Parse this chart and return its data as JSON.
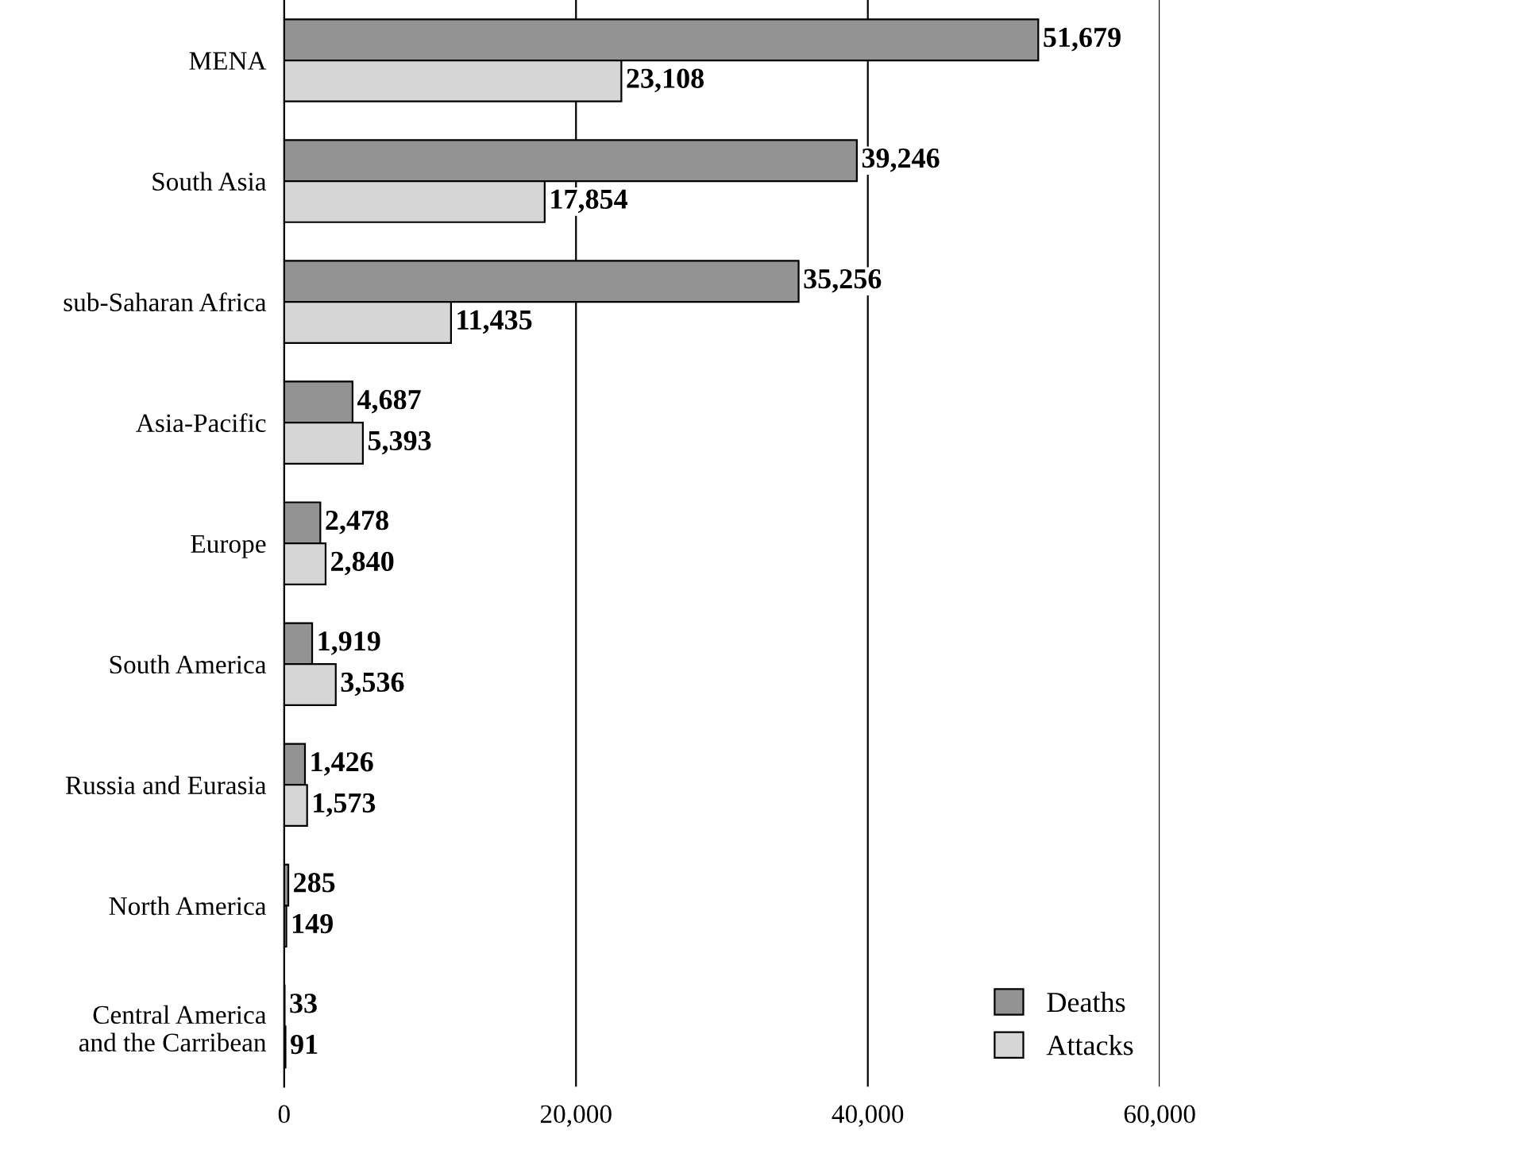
{
  "chart_data": {
    "type": "bar",
    "orientation": "horizontal",
    "categories": [
      "MENA",
      "South Asia",
      "sub-Saharan Africa",
      "Asia-Pacific",
      "Europe",
      "South America",
      "Russia and Eurasia",
      "North America",
      "Central America\nand the Carribean"
    ],
    "series": [
      {
        "name": "Deaths",
        "color": "#939393",
        "values": [
          51679,
          39246,
          35256,
          4687,
          2478,
          1919,
          1426,
          285,
          33
        ],
        "value_labels": [
          "51,679",
          "39,246",
          "35,256",
          "4,687",
          "2,478",
          "1,919",
          "1,426",
          "285",
          "33"
        ]
      },
      {
        "name": "Attacks",
        "color": "#d6d6d6",
        "values": [
          23108,
          17854,
          11435,
          5393,
          2840,
          3536,
          1573,
          149,
          91
        ],
        "value_labels": [
          "23,108",
          "17,854",
          "11,435",
          "5,393",
          "2,840",
          "3,536",
          "1,573",
          "149",
          "91"
        ]
      }
    ],
    "xlim": [
      0,
      60000
    ],
    "xticks": [
      {
        "value": 0,
        "label": "0"
      },
      {
        "value": 20000,
        "label": "20,000"
      },
      {
        "value": 40000,
        "label": "40,000"
      },
      {
        "value": 60000,
        "label": "60,000"
      }
    ],
    "grid": "x",
    "legend": "bottom right"
  }
}
